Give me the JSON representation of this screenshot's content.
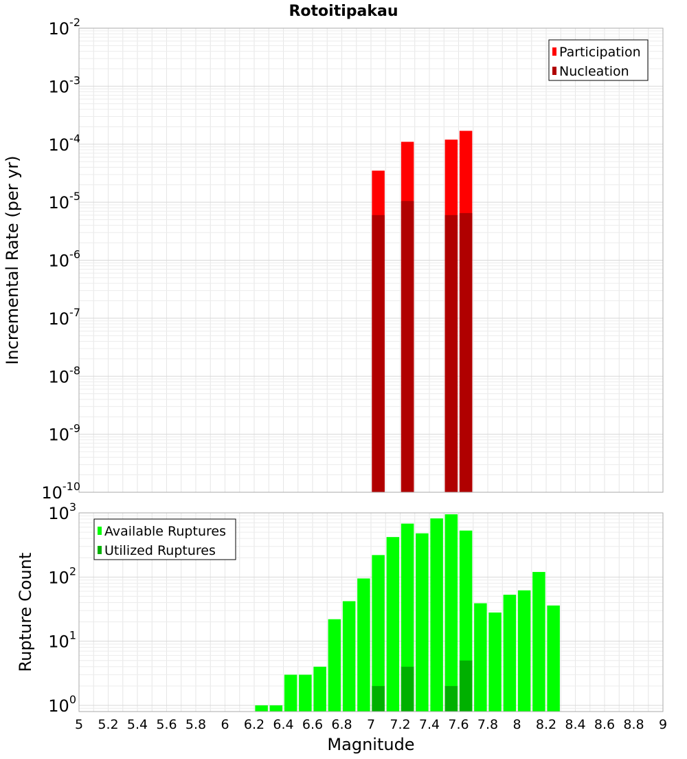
{
  "chart_data": [
    {
      "type": "bar",
      "title": "Rotoitipakau",
      "ylabel": "Incremental Rate (per yr)",
      "yscale": "log",
      "ylim": [
        1e-10,
        0.01
      ],
      "xlim": [
        5,
        9
      ],
      "y_ticks": [
        {
          "base": "10",
          "exp": "-10"
        },
        {
          "base": "10",
          "exp": "-9"
        },
        {
          "base": "10",
          "exp": "-8"
        },
        {
          "base": "10",
          "exp": "-7"
        },
        {
          "base": "10",
          "exp": "-6"
        },
        {
          "base": "10",
          "exp": "-5"
        },
        {
          "base": "10",
          "exp": "-4"
        },
        {
          "base": "10",
          "exp": "-3"
        },
        {
          "base": "10",
          "exp": "-2"
        }
      ],
      "grid": true,
      "legend_position": "top-right",
      "series": [
        {
          "name": "Participation",
          "color": "#ff0000",
          "x": [
            7.05,
            7.25,
            7.55,
            7.65
          ],
          "values": [
            3.5e-05,
            0.00011,
            0.00012,
            0.00017
          ]
        },
        {
          "name": "Nucleation",
          "color": "#b00000",
          "x": [
            7.05,
            7.25,
            7.55,
            7.65
          ],
          "values": [
            6e-06,
            1.05e-05,
            6e-06,
            6.5e-06
          ]
        }
      ]
    },
    {
      "type": "bar",
      "xlabel": "Magnitude",
      "ylabel": "Rupture Count",
      "yscale": "log",
      "ylim": [
        0.8,
        1000
      ],
      "xlim": [
        5,
        9
      ],
      "x_ticks": [
        "5",
        "5.2",
        "5.4",
        "5.6",
        "5.8",
        "6",
        "6.2",
        "6.4",
        "6.6",
        "6.8",
        "7",
        "7.2",
        "7.4",
        "7.6",
        "7.8",
        "8",
        "8.2",
        "8.4",
        "8.6",
        "8.8",
        "9"
      ],
      "y_ticks": [
        {
          "base": "10",
          "exp": "0"
        },
        {
          "base": "10",
          "exp": "1"
        },
        {
          "base": "10",
          "exp": "2"
        },
        {
          "base": "10",
          "exp": "3"
        }
      ],
      "grid": true,
      "legend_position": "top-left",
      "series": [
        {
          "name": "Available Ruptures",
          "color": "#00ff00",
          "x": [
            6.25,
            6.35,
            6.45,
            6.55,
            6.65,
            6.75,
            6.85,
            6.95,
            7.05,
            7.15,
            7.25,
            7.35,
            7.45,
            7.55,
            7.65,
            7.75,
            7.85,
            7.95,
            8.05,
            8.15,
            8.25
          ],
          "values": [
            1,
            1,
            3,
            3,
            4,
            22,
            42,
            95,
            220,
            420,
            680,
            480,
            820,
            950,
            530,
            39,
            28,
            53,
            62,
            120,
            36
          ]
        },
        {
          "name": "Utilized Ruptures",
          "color": "#00b000",
          "x": [
            7.05,
            7.25,
            7.55,
            7.65
          ],
          "values": [
            2,
            4,
            2,
            5
          ]
        }
      ]
    }
  ]
}
